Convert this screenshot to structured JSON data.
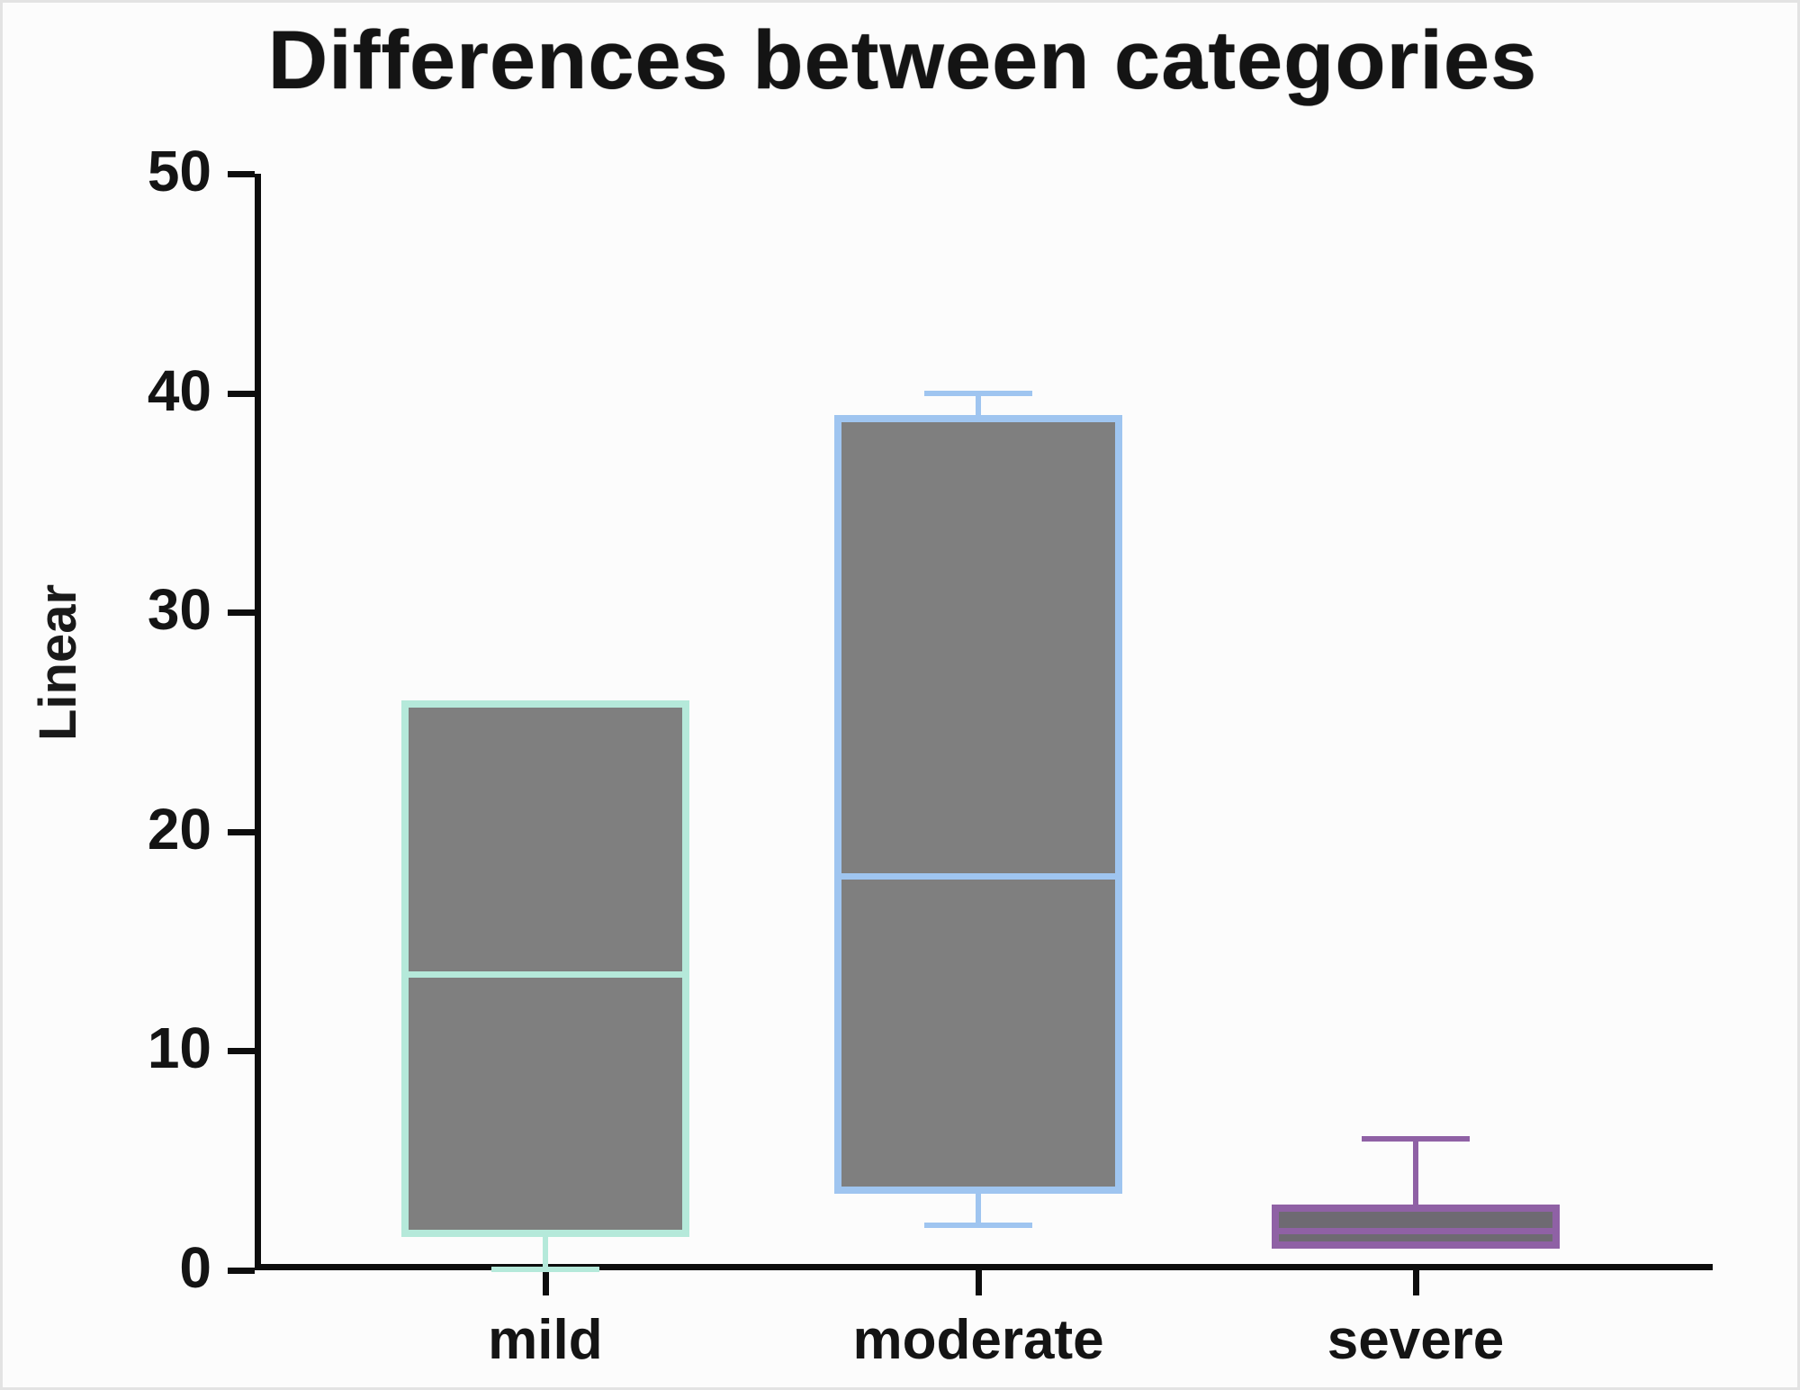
{
  "title": "Differences between categories",
  "chart_data": {
    "type": "boxplot",
    "title": "Differences between categories",
    "xlabel": "",
    "ylabel": "Linear",
    "ylim": [
      0,
      50
    ],
    "yticks": [
      0,
      10,
      20,
      30,
      40,
      50
    ],
    "grid": false,
    "legend": null,
    "categories": [
      "mild",
      "moderate",
      "severe"
    ],
    "series": [
      {
        "name": "mild",
        "q1": 1.5,
        "median": 13.5,
        "q3": 26,
        "whisker_low": 0,
        "whisker_high": null,
        "border_color": "#b5e9da",
        "fill_color": "#7f7f7f"
      },
      {
        "name": "moderate",
        "q1": 3.5,
        "median": 18,
        "q3": 39,
        "whisker_low": 2,
        "whisker_high": 40,
        "border_color": "#9fc5f0",
        "fill_color": "#7f7f7f"
      },
      {
        "name": "severe",
        "q1": 1,
        "median": 1.8,
        "q3": 3,
        "whisker_low": null,
        "whisker_high": 6,
        "border_color": "#8f61a5",
        "fill_color": "#6e6a72"
      }
    ]
  }
}
